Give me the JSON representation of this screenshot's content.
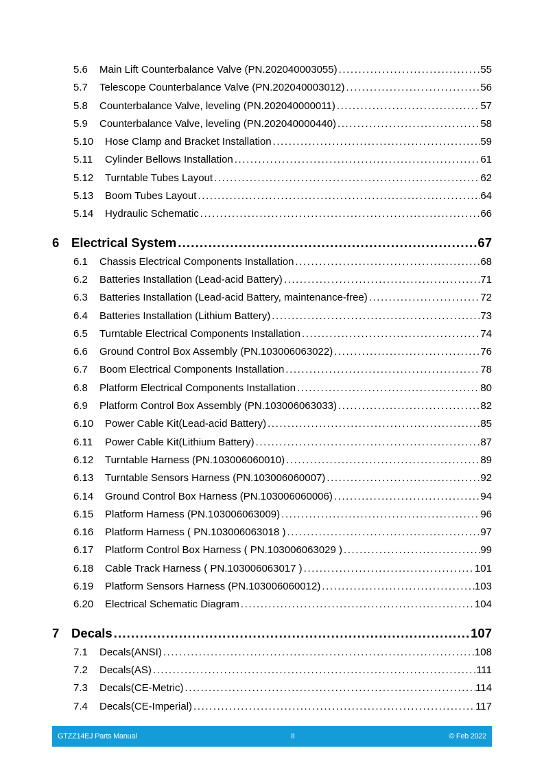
{
  "toc": [
    {
      "level": 2,
      "num": "5.6",
      "title": "Main Lift Counterbalance Valve (PN.202040003055)",
      "page": "55"
    },
    {
      "level": 2,
      "num": "5.7",
      "title": "Telescope Counterbalance Valve (PN.202040003012)",
      "page": "56"
    },
    {
      "level": 2,
      "num": "5.8",
      "title": "Counterbalance Valve, leveling (PN.202040000011)",
      "page": "57"
    },
    {
      "level": 2,
      "num": "5.9",
      "title": "Counterbalance Valve, leveling (PN.202040000440)",
      "page": "58"
    },
    {
      "level": 2,
      "num": "5.10",
      "title": "Hose Clamp and Bracket Installation",
      "page": "59"
    },
    {
      "level": 2,
      "num": "5.11",
      "title": "Cylinder Bellows Installation",
      "page": "61"
    },
    {
      "level": 2,
      "num": "5.12",
      "title": "Turntable Tubes Layout",
      "page": "62"
    },
    {
      "level": 2,
      "num": "5.13",
      "title": "Boom Tubes Layout",
      "page": "64"
    },
    {
      "level": 2,
      "num": "5.14",
      "title": "Hydraulic Schematic",
      "page": "66"
    },
    {
      "level": 1,
      "num": "6",
      "title": "Electrical System",
      "page": "67"
    },
    {
      "level": 2,
      "num": "6.1",
      "title": "Chassis Electrical Components Installation",
      "page": "68"
    },
    {
      "level": 2,
      "num": "6.2",
      "title": "Batteries Installation (Lead-acid Battery)",
      "page": "71"
    },
    {
      "level": 2,
      "num": "6.3",
      "title": "Batteries Installation (Lead-acid Battery, maintenance-free)",
      "page": "72"
    },
    {
      "level": 2,
      "num": "6.4",
      "title": "Batteries Installation (Lithium Battery)",
      "page": "73"
    },
    {
      "level": 2,
      "num": "6.5",
      "title": "Turntable Electrical Components Installation",
      "page": "74"
    },
    {
      "level": 2,
      "num": "6.6",
      "title": "Ground Control Box Assembly (PN.103006063022)",
      "page": "76"
    },
    {
      "level": 2,
      "num": "6.7",
      "title": "Boom Electrical Components Installation",
      "page": "78"
    },
    {
      "level": 2,
      "num": "6.8",
      "title": "Platform Electrical Components Installation",
      "page": "80"
    },
    {
      "level": 2,
      "num": "6.9",
      "title": "Platform Control Box Assembly (PN.103006063033)",
      "page": "82"
    },
    {
      "level": 2,
      "num": "6.10",
      "title": "Power Cable Kit(Lead-acid Battery)",
      "page": "85"
    },
    {
      "level": 2,
      "num": "6.11",
      "title": "Power Cable Kit(Lithium Battery)",
      "page": "87"
    },
    {
      "level": 2,
      "num": "6.12",
      "title": "Turntable Harness (PN.103006060010)",
      "page": "89"
    },
    {
      "level": 2,
      "num": "6.13",
      "title": "Turntable Sensors Harness (PN.103006060007)",
      "page": "92"
    },
    {
      "level": 2,
      "num": "6.14",
      "title": "Ground Control Box Harness (PN.103006060006)",
      "page": "94"
    },
    {
      "level": 2,
      "num": "6.15",
      "title": "Platform Harness (PN.103006063009)",
      "page": "96"
    },
    {
      "level": 2,
      "num": "6.16",
      "title": "Platform Harness ( PN.103006063018 )",
      "page": "97"
    },
    {
      "level": 2,
      "num": "6.17",
      "title": "Platform Control Box Harness ( PN.103006063029 )",
      "page": "99"
    },
    {
      "level": 2,
      "num": "6.18",
      "title": "Cable Track Harness ( PN.103006063017 )",
      "page": "101"
    },
    {
      "level": 2,
      "num": "6.19",
      "title": "Platform Sensors Harness (PN.103006060012)",
      "page": "103"
    },
    {
      "level": 2,
      "num": "6.20",
      "title": "Electrical Schematic Diagram",
      "page": "104"
    },
    {
      "level": 1,
      "num": "7",
      "title": "Decals",
      "page": "107"
    },
    {
      "level": 2,
      "num": "7.1",
      "title": "Decals(ANSI)",
      "page": "108"
    },
    {
      "level": 2,
      "num": "7.2",
      "title": "Decals(AS)",
      "page": "111"
    },
    {
      "level": 2,
      "num": "7.3",
      "title": "Decals(CE-Metric)",
      "page": "114"
    },
    {
      "level": 2,
      "num": "7.4",
      "title": "Decals(CE-Imperial)",
      "page": "117"
    }
  ],
  "footer": {
    "left": "GTZZ14EJ Parts Manual",
    "center": "II",
    "right": "© Feb 2022",
    "color": "#139cd8"
  }
}
